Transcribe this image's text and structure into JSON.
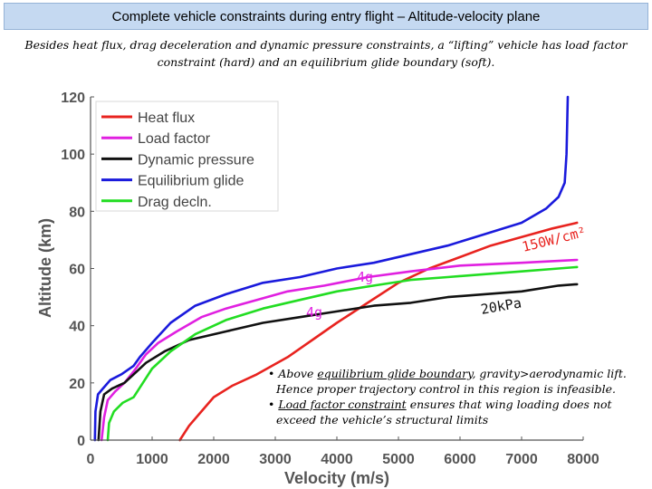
{
  "header": {
    "title": "Complete vehicle constraints during entry flight – Altitude-velocity plane",
    "subtitle": "Besides heat flux, drag deceleration and dynamic pressure constraints, a “lifting” vehicle has load factor constraint (hard) and an equilibrium glide boundary (soft)."
  },
  "notes": {
    "bullet1_pre": "• Above ",
    "bullet1_link": "equilibrium glide boundary",
    "bullet1_post": ", gravity>aerodynamic lift. Hence proper trajectory control in this region is infeasible.",
    "bullet2_pre": "• ",
    "bullet2_link": "Load factor constraint",
    "bullet2_post": " ensures that wing loading does not exceed the vehicle’s structural limits"
  },
  "chart_data": {
    "type": "line",
    "xlabel": "Velocity (m/s)",
    "ylabel": "Altitude (km)",
    "xlim": [
      0,
      8000
    ],
    "ylim": [
      0,
      120
    ],
    "x_ticks": [
      "0",
      "1000",
      "2000",
      "3000",
      "4000",
      "5000",
      "6000",
      "7000",
      "8000"
    ],
    "y_ticks": [
      "0",
      "20",
      "40",
      "60",
      "80",
      "100",
      "120"
    ],
    "grid": false,
    "legend_position": "top-left",
    "series": [
      {
        "name": "Heat flux",
        "color": "#e8231f",
        "points": [
          [
            1450,
            0
          ],
          [
            1600,
            5
          ],
          [
            1800,
            10
          ],
          [
            2000,
            15
          ],
          [
            2300,
            19
          ],
          [
            2700,
            23
          ],
          [
            3200,
            29
          ],
          [
            3600,
            35
          ],
          [
            4000,
            41
          ],
          [
            4500,
            48
          ],
          [
            5000,
            55
          ],
          [
            5500,
            60
          ],
          [
            6000,
            64
          ],
          [
            6500,
            68
          ],
          [
            7000,
            71
          ],
          [
            7500,
            74
          ],
          [
            7900,
            76
          ]
        ]
      },
      {
        "name": "Load factor",
        "color": "#e020e0",
        "points": [
          [
            180,
            0
          ],
          [
            220,
            8
          ],
          [
            280,
            14
          ],
          [
            400,
            17
          ],
          [
            550,
            20
          ],
          [
            700,
            24
          ],
          [
            900,
            30
          ],
          [
            1100,
            34
          ],
          [
            1400,
            38
          ],
          [
            1800,
            43
          ],
          [
            2200,
            46
          ],
          [
            2700,
            49
          ],
          [
            3200,
            52
          ],
          [
            3800,
            54
          ],
          [
            4500,
            57
          ],
          [
            5200,
            59
          ],
          [
            6000,
            61
          ],
          [
            7000,
            62
          ],
          [
            7900,
            63
          ]
        ]
      },
      {
        "name": "Dynamic pressure",
        "color": "#111111",
        "points": [
          [
            130,
            0
          ],
          [
            160,
            10
          ],
          [
            220,
            16
          ],
          [
            350,
            18
          ],
          [
            550,
            20
          ],
          [
            700,
            23
          ],
          [
            900,
            27
          ],
          [
            1200,
            31
          ],
          [
            1600,
            35
          ],
          [
            2200,
            38
          ],
          [
            2800,
            41
          ],
          [
            3400,
            43
          ],
          [
            4000,
            45
          ],
          [
            4600,
            47
          ],
          [
            5200,
            48
          ],
          [
            5800,
            50
          ],
          [
            6400,
            51
          ],
          [
            7000,
            52
          ],
          [
            7600,
            54
          ],
          [
            7900,
            54.5
          ]
        ]
      },
      {
        "name": "Equilibrium glide",
        "color": "#1a1adc",
        "points": [
          [
            70,
            0
          ],
          [
            80,
            10
          ],
          [
            120,
            16
          ],
          [
            200,
            18
          ],
          [
            320,
            21
          ],
          [
            500,
            23
          ],
          [
            700,
            26
          ],
          [
            800,
            29
          ],
          [
            1000,
            34
          ],
          [
            1300,
            41
          ],
          [
            1700,
            47
          ],
          [
            2200,
            51
          ],
          [
            2800,
            55
          ],
          [
            3400,
            57
          ],
          [
            4000,
            60
          ],
          [
            4600,
            62
          ],
          [
            5200,
            65
          ],
          [
            5800,
            68
          ],
          [
            6400,
            72
          ],
          [
            7000,
            76
          ],
          [
            7400,
            81
          ],
          [
            7600,
            85
          ],
          [
            7700,
            90
          ],
          [
            7730,
            100
          ],
          [
            7740,
            110
          ],
          [
            7750,
            120
          ]
        ]
      },
      {
        "name": "Drag decln.",
        "color": "#22dd22",
        "points": [
          [
            280,
            0
          ],
          [
            300,
            6
          ],
          [
            380,
            10
          ],
          [
            520,
            13
          ],
          [
            700,
            15
          ],
          [
            850,
            20
          ],
          [
            1000,
            25
          ],
          [
            1300,
            31
          ],
          [
            1700,
            37
          ],
          [
            2200,
            42
          ],
          [
            2800,
            46
          ],
          [
            3400,
            49
          ],
          [
            4000,
            52
          ],
          [
            4600,
            54
          ],
          [
            5200,
            56
          ],
          [
            5800,
            57
          ],
          [
            6400,
            58
          ],
          [
            7000,
            59
          ],
          [
            7600,
            60
          ],
          [
            7900,
            60.5
          ]
        ]
      }
    ],
    "annotations": [
      {
        "text": "150W/cm²",
        "color": "#e8231f"
      },
      {
        "text": "4g",
        "color": "#e020e0"
      },
      {
        "text": "4g",
        "color": "#e020e0"
      },
      {
        "text": "20kPa",
        "color": "#111111"
      }
    ]
  }
}
